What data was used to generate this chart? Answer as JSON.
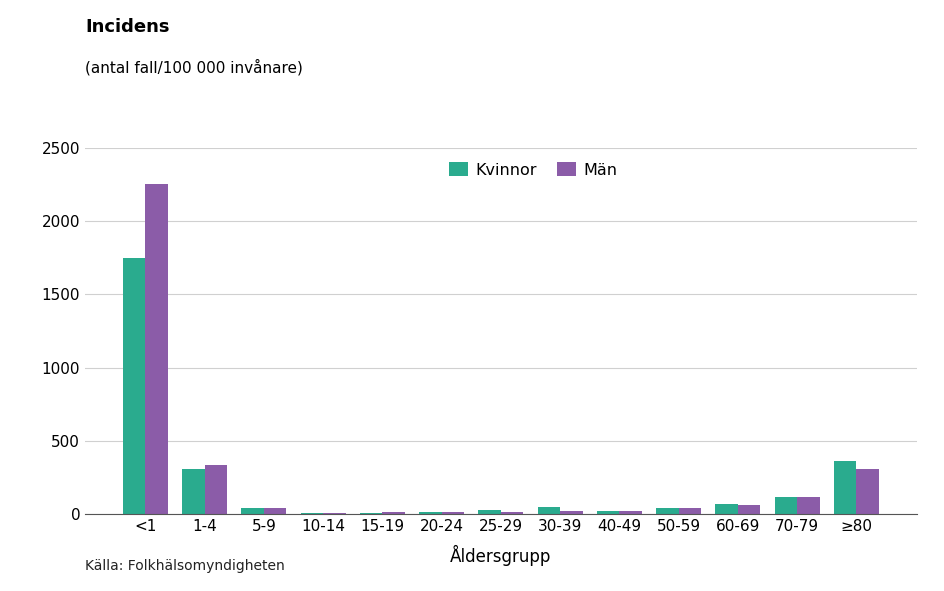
{
  "categories": [
    "<1",
    "1-4",
    "5-9",
    "10-14",
    "15-19",
    "20-24",
    "25-29",
    "30-39",
    "40-49",
    "50-59",
    "60-69",
    "70-79",
    "≥80"
  ],
  "kvinnor": [
    1750,
    305,
    45,
    8,
    10,
    15,
    30,
    50,
    20,
    40,
    70,
    115,
    360
  ],
  "man": [
    2250,
    335,
    40,
    10,
    12,
    18,
    15,
    20,
    25,
    40,
    65,
    120,
    305
  ],
  "color_kvinnor": "#2aab8e",
  "color_man": "#8b5ca8",
  "title_line1": "Incidens",
  "title_line2": "(antal fall/100 000 invånare)",
  "xlabel": "Åldersgrupp",
  "legend_kvinnor": "Kvinnor",
  "legend_man": "Män",
  "source": "Källa: Folkhälsomyndigheten",
  "ylim": [
    0,
    2500
  ],
  "yticks": [
    0,
    500,
    1000,
    1500,
    2000,
    2500
  ],
  "background_color": "#ffffff",
  "grid_color": "#d0d0d0"
}
